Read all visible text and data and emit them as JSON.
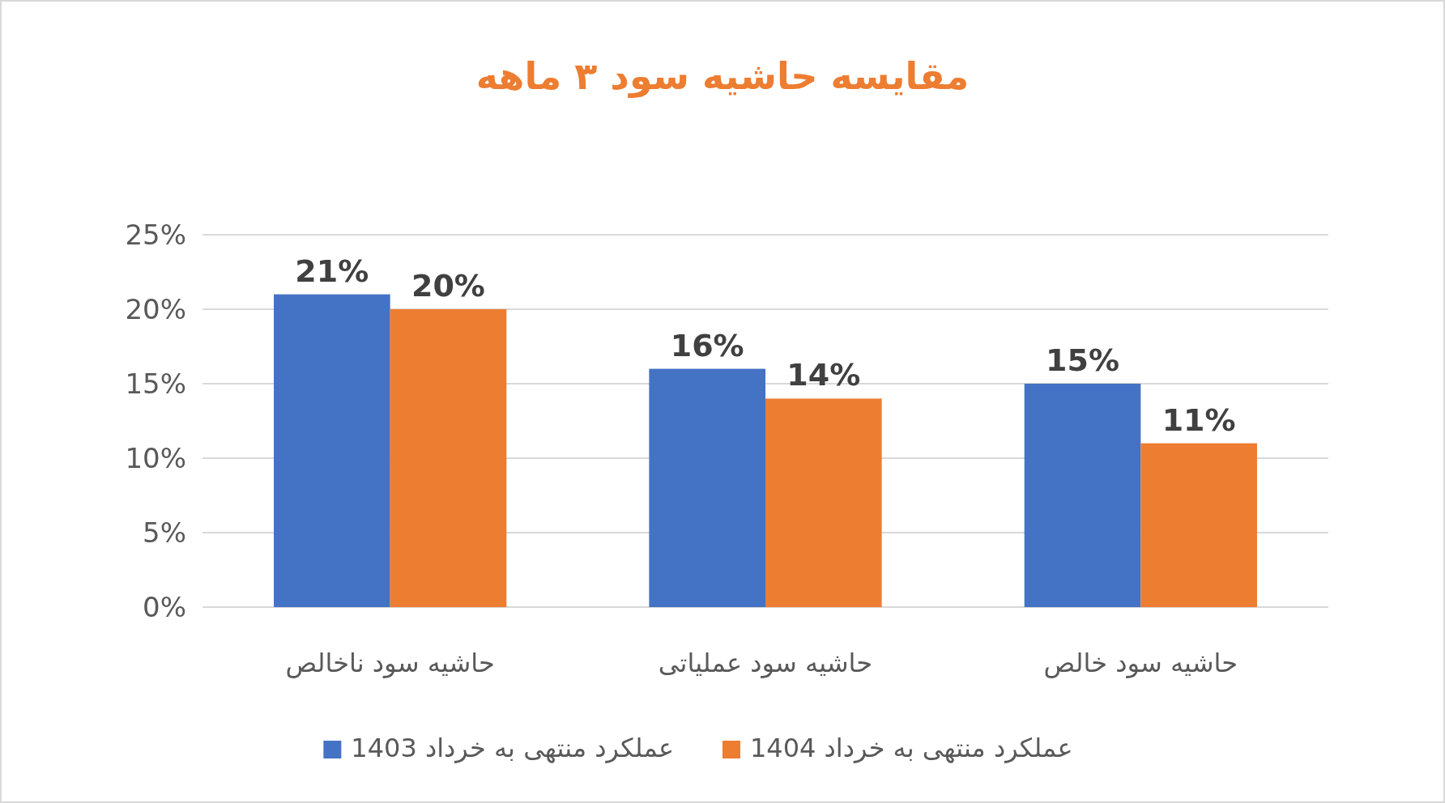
{
  "chart_data": {
    "type": "bar",
    "title": "مقایسه حاشیه سود ۳ ماهه",
    "categories": [
      "حاشیه سود ناخالص",
      "حاشیه سود عملیاتی",
      "حاشیه سود خالص"
    ],
    "series": [
      {
        "name": "عملکرد منتهی به خرداد 1403",
        "color": "#4472c4",
        "values": [
          21,
          16,
          15
        ],
        "value_labels": [
          "21%",
          "16%",
          "15%"
        ]
      },
      {
        "name": "عملکرد منتهی به خرداد 1404",
        "color": "#ed7d31",
        "values": [
          20,
          14,
          11
        ],
        "value_labels": [
          "20%",
          "14%",
          "11%"
        ]
      }
    ],
    "ylim": [
      0,
      25
    ],
    "yticks": [
      {
        "value": 0,
        "label": "0%"
      },
      {
        "value": 5,
        "label": "5%"
      },
      {
        "value": 10,
        "label": "10%"
      },
      {
        "value": 15,
        "label": "15%"
      },
      {
        "value": 20,
        "label": "20%"
      },
      {
        "value": 25,
        "label": "25%"
      }
    ],
    "grid": "y",
    "legend": "bottom"
  }
}
